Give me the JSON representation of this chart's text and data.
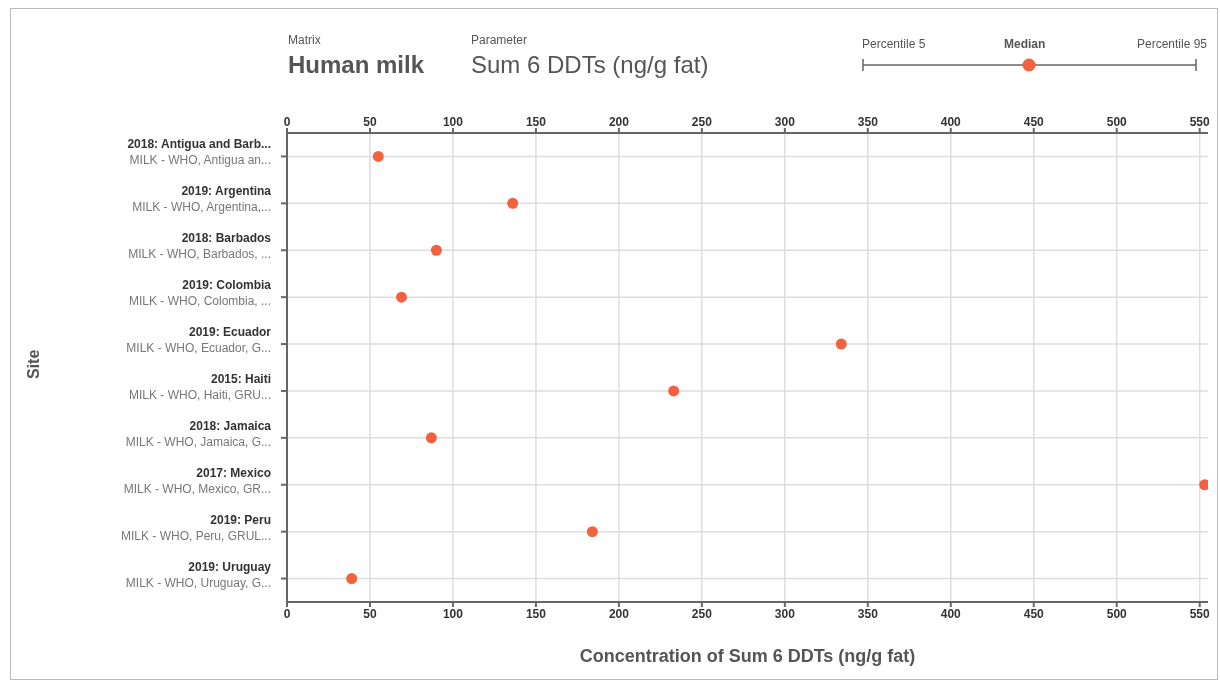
{
  "chart_data": {
    "type": "scatter",
    "orientation": "horizontal",
    "title": "Human milk",
    "subtitle": "Sum 6 DDTs (ng/g fat)",
    "xlabel": "Concentration of Sum 6 DDTs (ng/g fat)",
    "ylabel": "Site",
    "annotations": [
      "Matrix",
      "Parameter",
      "Percentile 5",
      "Percentile 95"
    ],
    "categories": [
      "2018: Antigua and Barb...\nMILK - WHO, Antigua an...",
      "2019: Argentina\nMILK - WHO, Argentina,...",
      "2018: Barbados\nMILK - WHO, Barbados, ...",
      "2019: Colombia\nMILK - WHO, Colombia, ...",
      "2019: Ecuador\nMILK - WHO, Ecuador, G...",
      "2015: Haiti\nMILK - WHO, Haiti, GRU...",
      "2018: Jamaica\nMILK - WHO, Jamaica, G...",
      "2017: Mexico\nMILK - WHO, Mexico, GR...",
      "2019: Peru\nMILK - WHO, Peru, GRUL...",
      "2019: Uruguay\nMILK - WHO, Uruguay, G..."
    ],
    "series": [
      {
        "name": "Median",
        "color": "#f4613f",
        "values": [
          55,
          136,
          90,
          69,
          334,
          233,
          87,
          553,
          184,
          39
        ]
      }
    ],
    "xlim": [
      0,
      555
    ],
    "xticks": [
      0,
      50,
      100,
      150,
      200,
      250,
      300,
      350,
      400,
      450,
      500,
      550
    ],
    "x2lim": [
      0,
      555
    ],
    "x2ticks": [
      0,
      50,
      100,
      150,
      200,
      250,
      300,
      350,
      400,
      450,
      500,
      550
    ],
    "grid": true,
    "legend": "top right",
    "marker": "circle"
  }
}
